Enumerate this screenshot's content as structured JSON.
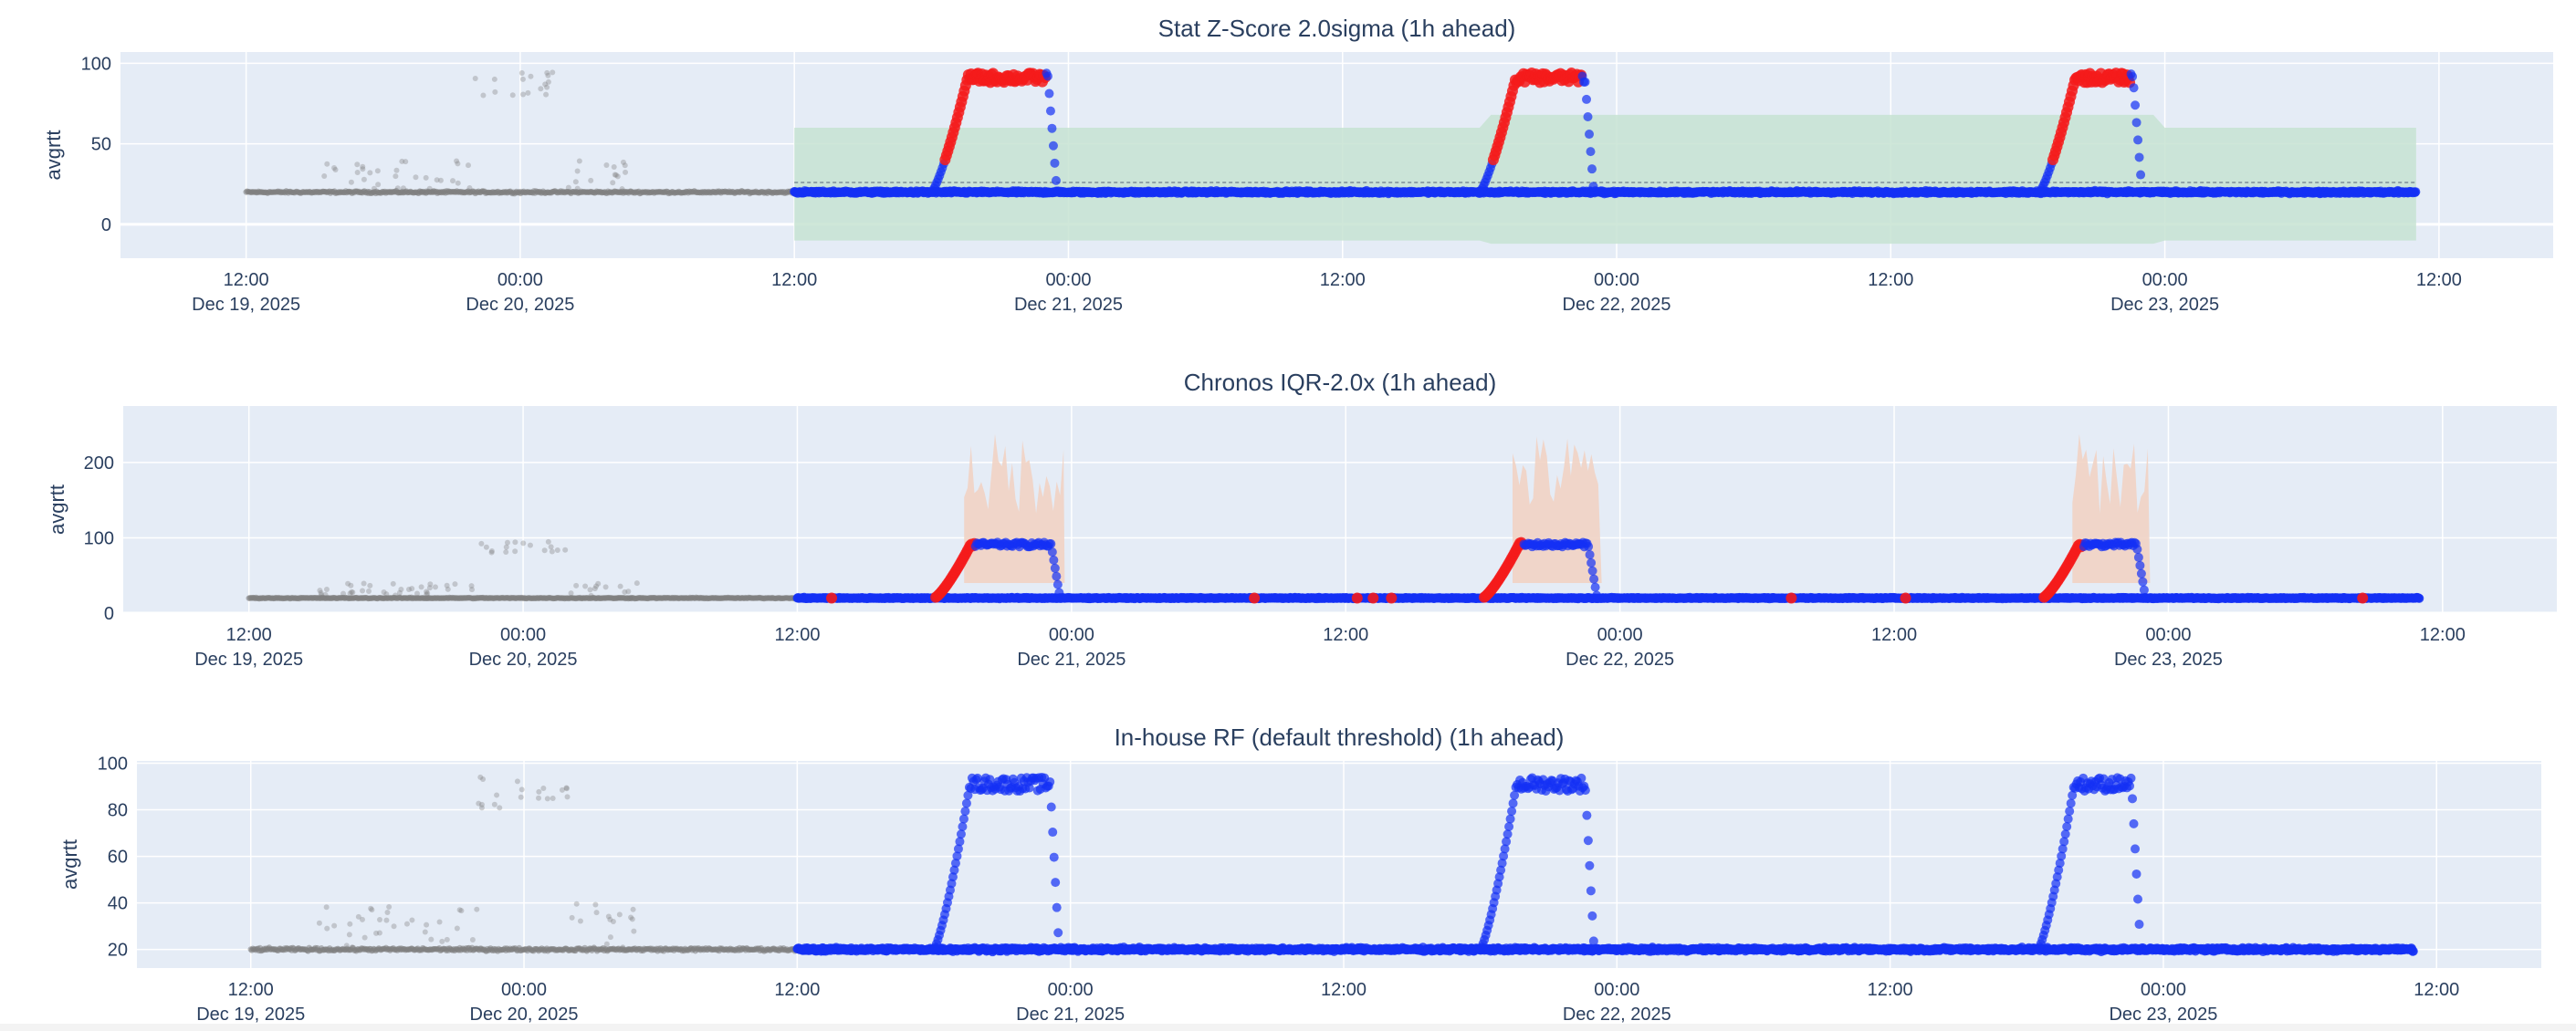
{
  "chart_data": [
    {
      "type": "scatter",
      "title": "Stat Z-Score 2.0sigma (1h ahead)",
      "ylabel": "avgrtt",
      "xlabel": "",
      "x_ticks": [
        "12:00|Dec 19, 2025",
        "00:00|Dec 20, 2025",
        "12:00",
        "00:00|Dec 21, 2025",
        "12:00",
        "00:00|Dec 22, 2025",
        "12:00",
        "00:00|Dec 23, 2025",
        "12:00"
      ],
      "x_tick_hours": [
        12,
        24,
        36,
        48,
        60,
        72,
        84,
        96,
        108
      ],
      "xlim_hours": [
        6.5,
        113
      ],
      "y_ticks": [
        0,
        50,
        100
      ],
      "ylim": [
        -21,
        107
      ],
      "band": {
        "start": 36,
        "end": 107,
        "lower": -10,
        "upper": 60,
        "color": "#c7e3d2"
      },
      "threshold_line": {
        "value": 26,
        "start": 36,
        "end": 107
      },
      "history": {
        "start": 12,
        "end": 36,
        "baseline": 20,
        "color": "#7f7f7f"
      },
      "actual": {
        "start": 36,
        "end": 107,
        "baseline": 20,
        "color": "#1431f5"
      },
      "anomaly_color": "#f51b1b",
      "episodes": [
        {
          "start": 42.0,
          "end": 47.5,
          "peak": 92
        },
        {
          "start": 66.0,
          "end": 71.0,
          "peak": 92
        },
        {
          "start": 90.5,
          "end": 95.0,
          "peak": 92
        }
      ]
    },
    {
      "type": "scatter",
      "title": "Chronos IQR-2.0x (1h ahead)",
      "ylabel": "avgrtt",
      "xlabel": "",
      "x_ticks": [
        "12:00|Dec 19, 2025",
        "00:00|Dec 20, 2025",
        "12:00",
        "00:00|Dec 21, 2025",
        "12:00",
        "00:00|Dec 22, 2025",
        "12:00",
        "00:00|Dec 23, 2025",
        "12:00"
      ],
      "x_tick_hours": [
        12,
        24,
        36,
        48,
        60,
        72,
        84,
        96,
        108
      ],
      "xlim_hours": [
        6.5,
        113
      ],
      "y_ticks": [
        0,
        100,
        200
      ],
      "ylim": [
        0,
        275
      ],
      "band_color": "#f1d3c4",
      "history": {
        "start": 12,
        "end": 36,
        "baseline": 20,
        "color": "#7f7f7f"
      },
      "actual": {
        "start": 36,
        "end": 107,
        "baseline": 20,
        "color": "#1431f5"
      },
      "anomaly_color": "#f51b1b",
      "episodes": [
        {
          "start": 42.0,
          "end": 47.5,
          "peak": 92
        },
        {
          "start": 66.0,
          "end": 71.0,
          "peak": 92
        },
        {
          "start": 90.5,
          "end": 95.0,
          "peak": 92
        }
      ]
    },
    {
      "type": "scatter",
      "title": "In-house RF (default threshold) (1h ahead)",
      "ylabel": "avgrtt",
      "xlabel": "",
      "x_ticks": [
        "12:00|Dec 19, 2025",
        "00:00|Dec 20, 2025",
        "12:00",
        "00:00|Dec 21, 2025",
        "12:00",
        "00:00|Dec 22, 2025",
        "12:00",
        "00:00|Dec 23, 2025",
        "12:00"
      ],
      "x_tick_hours": [
        12,
        24,
        36,
        48,
        60,
        72,
        84,
        96,
        108
      ],
      "xlim_hours": [
        7.0,
        112.6
      ],
      "y_ticks": [
        20,
        40,
        60,
        80,
        100
      ],
      "ylim": [
        12,
        101
      ],
      "history": {
        "start": 12,
        "end": 36,
        "baseline": 20,
        "color": "#7f7f7f"
      },
      "actual": {
        "start": 36,
        "end": 107,
        "baseline": 20,
        "color": "#1431f5"
      },
      "episodes": [
        {
          "start": 42.0,
          "end": 47.5,
          "peak": 92
        },
        {
          "start": 66.0,
          "end": 71.0,
          "peak": 92
        },
        {
          "start": 90.5,
          "end": 95.0,
          "peak": 92
        }
      ]
    }
  ]
}
